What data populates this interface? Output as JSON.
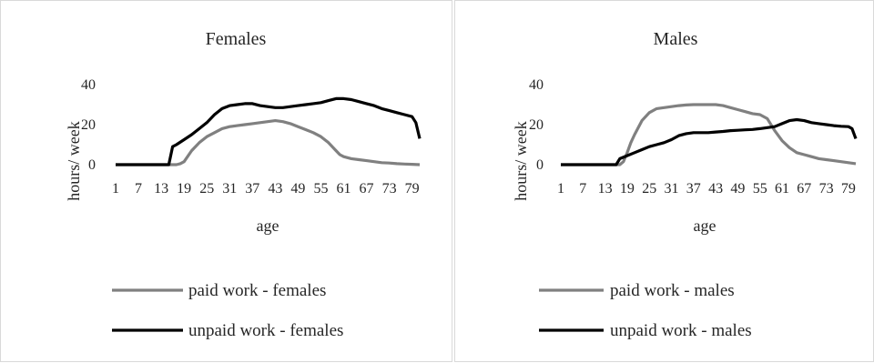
{
  "chart_data": [
    {
      "type": "line",
      "title": "Females",
      "xlabel": "age",
      "ylabel": "hours/ week",
      "ylim": [
        0,
        40
      ],
      "yticks": [
        0,
        20,
        40
      ],
      "xticks": [
        1,
        7,
        13,
        19,
        25,
        31,
        37,
        43,
        49,
        55,
        61,
        67,
        73,
        79
      ],
      "grid": false,
      "legend_position": "bottom",
      "series": [
        {
          "name": "paid work - females",
          "color": "#808080",
          "x": [
            1,
            13,
            17,
            18,
            19,
            21,
            23,
            25,
            27,
            29,
            31,
            33,
            35,
            37,
            39,
            41,
            43,
            45,
            47,
            49,
            51,
            53,
            55,
            57,
            59,
            60,
            61,
            62,
            63,
            65,
            67,
            69,
            71,
            73,
            75,
            77,
            79,
            81
          ],
          "y": [
            0,
            0,
            0,
            0.5,
            1.5,
            7,
            11,
            14,
            16,
            18,
            19,
            19.5,
            20,
            20.5,
            21,
            21.5,
            22,
            21.5,
            20.5,
            19,
            17.5,
            16,
            14,
            11,
            7,
            5,
            4,
            3.5,
            3,
            2.5,
            2,
            1.5,
            1,
            0.8,
            0.5,
            0.3,
            0.2,
            0
          ]
        },
        {
          "name": "unpaid work - females",
          "color": "#000000",
          "x": [
            1,
            15,
            16,
            17,
            19,
            21,
            23,
            25,
            27,
            29,
            31,
            33,
            35,
            37,
            39,
            41,
            43,
            45,
            47,
            49,
            51,
            53,
            55,
            57,
            59,
            61,
            63,
            65,
            67,
            69,
            71,
            73,
            75,
            77,
            79,
            80,
            81
          ],
          "y": [
            0,
            0,
            9,
            10,
            12.5,
            15,
            18,
            21,
            25,
            28,
            29.5,
            30,
            30.5,
            30.5,
            29.5,
            29,
            28.5,
            28.5,
            29,
            29.5,
            30,
            30.5,
            31,
            32,
            33,
            33,
            32.5,
            31.5,
            30.5,
            29.5,
            28,
            27,
            26,
            25,
            24,
            21,
            13
          ]
        }
      ]
    },
    {
      "type": "line",
      "title": "Males",
      "xlabel": "age",
      "ylabel": "hours/ week",
      "ylim": [
        0,
        40
      ],
      "yticks": [
        0,
        20,
        40
      ],
      "xticks": [
        1,
        7,
        13,
        19,
        25,
        31,
        37,
        43,
        49,
        55,
        61,
        67,
        73,
        79
      ],
      "grid": false,
      "legend_position": "bottom",
      "series": [
        {
          "name": "paid work - males",
          "color": "#808080",
          "x": [
            1,
            17,
            18,
            19,
            20,
            21,
            23,
            25,
            27,
            29,
            31,
            33,
            35,
            37,
            39,
            41,
            43,
            45,
            47,
            49,
            51,
            53,
            55,
            57,
            59,
            61,
            63,
            65,
            67,
            69,
            71,
            73,
            75,
            77,
            79,
            81
          ],
          "y": [
            0,
            0,
            1.5,
            6,
            11,
            15,
            22,
            26,
            28,
            28.5,
            29,
            29.5,
            29.8,
            30,
            30,
            30,
            30,
            29.5,
            28.5,
            27.5,
            26.5,
            25.5,
            25,
            23,
            17,
            12,
            8.5,
            6,
            5,
            4,
            3,
            2.5,
            2,
            1.5,
            1,
            0.5
          ]
        },
        {
          "name": "unpaid work - males",
          "color": "#000000",
          "x": [
            1,
            16,
            17,
            19,
            21,
            23,
            25,
            27,
            29,
            31,
            33,
            35,
            37,
            39,
            41,
            43,
            45,
            47,
            49,
            51,
            53,
            55,
            57,
            59,
            61,
            63,
            65,
            67,
            69,
            71,
            73,
            75,
            77,
            79,
            80,
            81
          ],
          "y": [
            0,
            0,
            3,
            4.5,
            6,
            7.5,
            9,
            10,
            11,
            12.5,
            14.5,
            15.5,
            16,
            16,
            16,
            16.3,
            16.6,
            17,
            17.2,
            17.4,
            17.6,
            18,
            18.5,
            19,
            20.5,
            22,
            22.5,
            22,
            21,
            20.5,
            20,
            19.5,
            19.2,
            19,
            18,
            13
          ]
        }
      ]
    }
  ]
}
